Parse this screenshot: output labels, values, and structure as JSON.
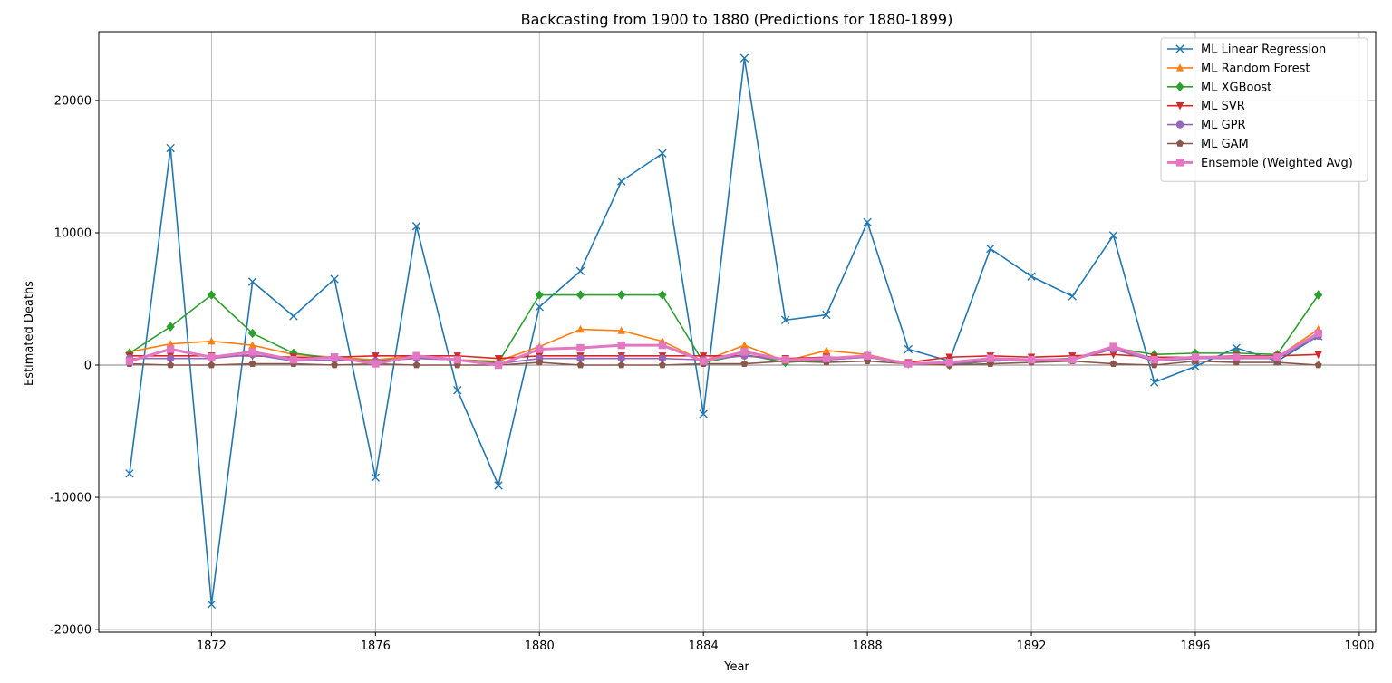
{
  "chart_data": {
    "type": "line",
    "title": "Backcasting from 1900 to 1880 (Predictions for 1880-1899)",
    "xlabel": "Year",
    "ylabel": "Estimated Deaths",
    "xlim": [
      1869.25,
      1900.4
    ],
    "ylim": [
      -20200,
      25200
    ],
    "xticks": [
      1872,
      1876,
      1880,
      1884,
      1888,
      1892,
      1896,
      1900
    ],
    "yticks": [
      -20000,
      -10000,
      0,
      10000,
      20000
    ],
    "grid": true,
    "legend_position": "top-right",
    "x": [
      1870,
      1871,
      1872,
      1873,
      1874,
      1875,
      1876,
      1877,
      1878,
      1879,
      1880,
      1881,
      1882,
      1883,
      1884,
      1885,
      1886,
      1887,
      1888,
      1889,
      1890,
      1891,
      1892,
      1893,
      1894,
      1895,
      1896,
      1897,
      1898,
      1899
    ],
    "series": [
      {
        "name": "ML Linear Regression",
        "color": "#1f77b4",
        "marker": "x",
        "values": [
          -8200,
          16400,
          -18100,
          6300,
          3700,
          6500,
          -8500,
          10500,
          -1900,
          -9100,
          4400,
          7100,
          13900,
          16000,
          -3700,
          23200,
          3400,
          3800,
          10800,
          1200,
          300,
          8800,
          6700,
          5200,
          9800,
          -1300,
          -100,
          1300,
          300,
          2200
        ]
      },
      {
        "name": "ML Random Forest",
        "color": "#ff7f0e",
        "marker": "triangle-up",
        "values": [
          1000,
          1600,
          1800,
          1500,
          800,
          600,
          400,
          700,
          400,
          300,
          1400,
          2700,
          2600,
          1800,
          300,
          1500,
          300,
          1100,
          800,
          100,
          200,
          400,
          400,
          500,
          1300,
          300,
          500,
          600,
          600,
          2700
        ]
      },
      {
        "name": "ML XGBoost",
        "color": "#2ca02c",
        "marker": "diamond",
        "values": [
          900,
          2900,
          5300,
          2400,
          900,
          500,
          300,
          600,
          400,
          200,
          5300,
          5300,
          5300,
          5300,
          200,
          800,
          200,
          400,
          600,
          100,
          0,
          300,
          400,
          500,
          1300,
          800,
          900,
          900,
          800,
          5300
        ]
      },
      {
        "name": "ML SVR",
        "color": "#d62728",
        "marker": "triangle-down",
        "values": [
          700,
          700,
          700,
          700,
          600,
          600,
          700,
          700,
          700,
          500,
          700,
          700,
          700,
          700,
          700,
          700,
          500,
          600,
          600,
          200,
          600,
          700,
          600,
          700,
          800,
          600,
          600,
          700,
          700,
          800
        ]
      },
      {
        "name": "ML GPR",
        "color": "#9467bd",
        "marker": "circle",
        "values": [
          500,
          500,
          500,
          800,
          300,
          400,
          300,
          500,
          400,
          100,
          500,
          500,
          500,
          500,
          400,
          700,
          400,
          400,
          600,
          100,
          100,
          300,
          400,
          400,
          1200,
          300,
          500,
          500,
          500,
          2200
        ]
      },
      {
        "name": "ML GAM",
        "color": "#8c564b",
        "marker": "pentagon",
        "values": [
          100,
          0,
          0,
          100,
          100,
          0,
          100,
          0,
          0,
          0,
          200,
          0,
          0,
          0,
          100,
          100,
          300,
          200,
          300,
          100,
          0,
          100,
          200,
          300,
          100,
          0,
          300,
          200,
          200,
          0
        ]
      },
      {
        "name": "Ensemble (Weighted Avg)",
        "color": "#e377c2",
        "marker": "square",
        "values": [
          300,
          1200,
          600,
          1000,
          400,
          600,
          100,
          700,
          400,
          0,
          1200,
          1300,
          1500,
          1500,
          300,
          1000,
          400,
          500,
          700,
          100,
          200,
          500,
          400,
          400,
          1400,
          400,
          600,
          600,
          600,
          2400
        ]
      }
    ]
  }
}
